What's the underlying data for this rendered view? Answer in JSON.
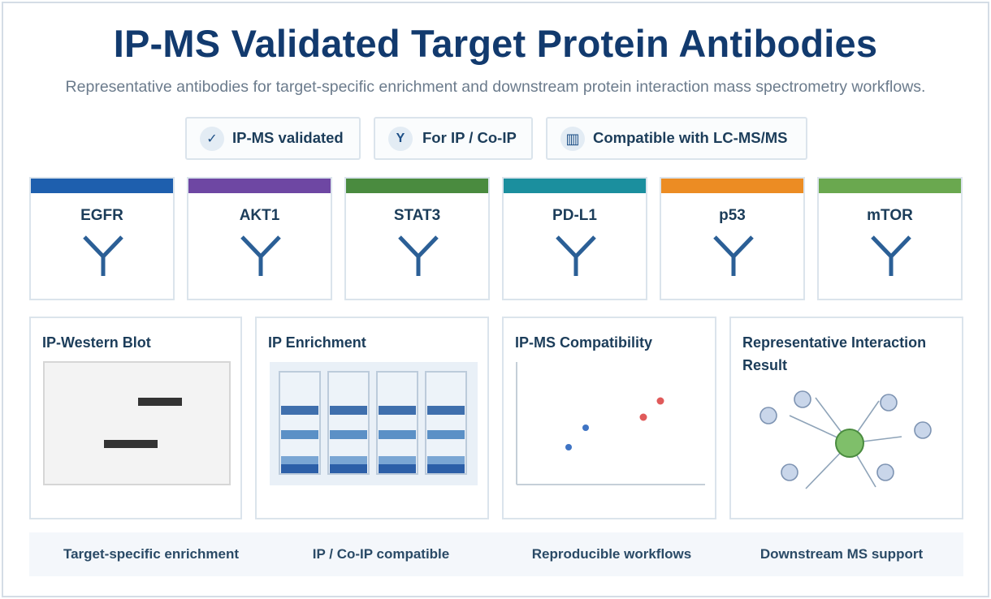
{
  "title": "IP-MS Validated Target Protein Antibodies",
  "subtitle": "Representative antibodies for target-specific enrichment and downstream protein interaction mass spectrometry workflows.",
  "badges": [
    {
      "icon": "✓",
      "icon_name": "checkmark-icon",
      "label": "IP-MS validated"
    },
    {
      "icon": "Y",
      "icon_name": "antibody-icon",
      "label": "For IP / Co-IP"
    },
    {
      "icon": "▥",
      "icon_name": "barcode-icon",
      "label": "Compatible with LC-MS/MS"
    }
  ],
  "targets": [
    {
      "name": "EGFR",
      "color": "#1e5fae"
    },
    {
      "name": "AKT1",
      "color": "#6e47a3"
    },
    {
      "name": "STAT3",
      "color": "#4a8b3f"
    },
    {
      "name": "PD-L1",
      "color": "#1b8f9e"
    },
    {
      "name": "p53",
      "color": "#ec8c23"
    },
    {
      "name": "mTOR",
      "color": "#6aa84f"
    }
  ],
  "antibody_icon_color": "#2b5f96",
  "panels": {
    "western": {
      "title": "IP-Western Blot"
    },
    "enrichment": {
      "title": "IP Enrichment",
      "lanes": 4
    },
    "compat": {
      "title": "IP-MS Compatibility"
    },
    "interaction": {
      "title_line1": "Representative Interaction",
      "title_line2": "Result",
      "hub_color": "#7fbf6a",
      "node_color": "#c9d6ea"
    }
  },
  "footer": [
    "Target-specific enrichment",
    "IP / Co-IP compatible",
    "Reproducible workflows",
    "Downstream MS support"
  ]
}
